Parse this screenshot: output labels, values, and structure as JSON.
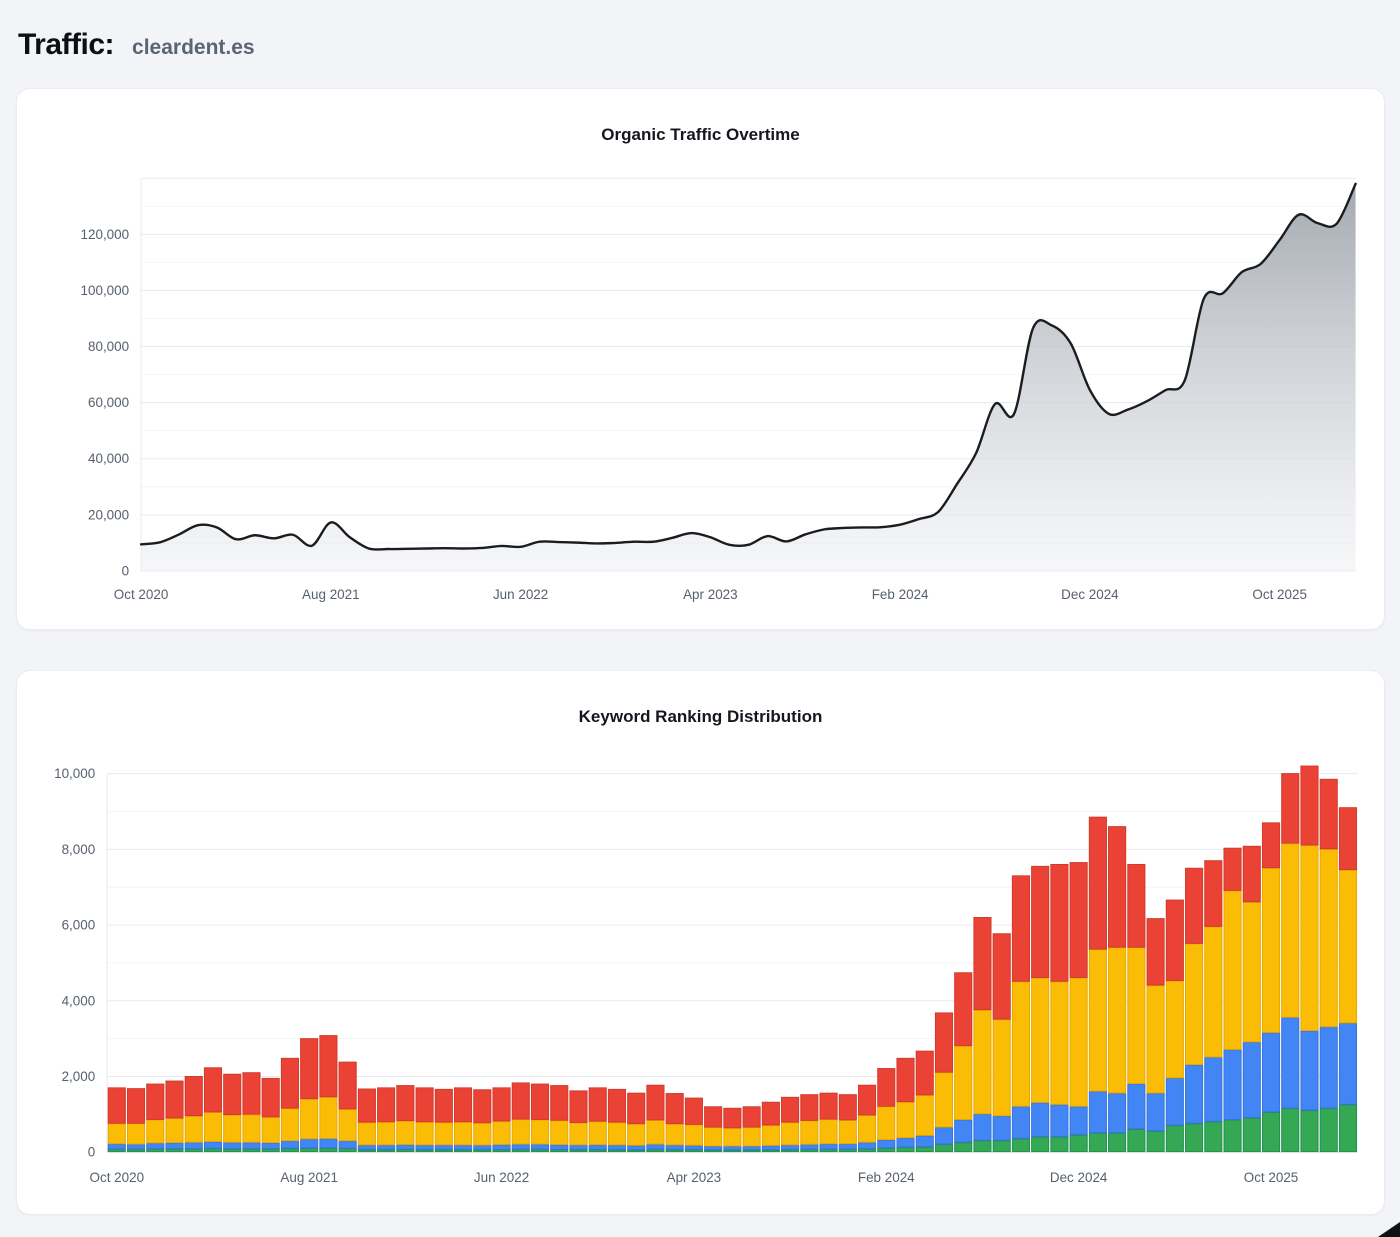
{
  "page": {
    "title_label": "Traffic:",
    "domain": "cleardent.es"
  },
  "colors": {
    "background": "#f2f4f7",
    "card": "#ffffff",
    "card_border": "#e9ecf0",
    "grid_major": "#e7eaee",
    "grid_minor": "#f3f4f7",
    "axis_text": "#57606f",
    "title_text": "#14181e"
  },
  "chart_data": [
    {
      "type": "area",
      "title": "Organic Traffic Overtime",
      "x_start": "Oct 2020",
      "x_interval": "monthly",
      "x_tick_labels": [
        "Oct 2020",
        "Aug 2021",
        "Jun 2022",
        "Apr 2023",
        "Feb 2024",
        "Dec 2024",
        "Oct 2025"
      ],
      "x_tick_indices": [
        0,
        10,
        20,
        30,
        40,
        50,
        60
      ],
      "y_ticks": [
        0,
        20000,
        40000,
        60000,
        80000,
        100000,
        120000
      ],
      "ylim": [
        0,
        140000
      ],
      "grid": "horizontal major every 20000, minor every 10000",
      "legend": "none",
      "line_color": "#1b1c1f",
      "fill_gradient_top": "#9da3ab",
      "fill_gradient_bottom": "#eef0f3",
      "values": [
        9500,
        10200,
        13000,
        16300,
        15500,
        11300,
        12700,
        11600,
        12900,
        9000,
        17300,
        12000,
        8000,
        7800,
        7900,
        8000,
        8100,
        8000,
        8200,
        8900,
        8600,
        10400,
        10300,
        10100,
        9800,
        10000,
        10400,
        10400,
        11800,
        13500,
        12000,
        9300,
        9300,
        12400,
        10500,
        13000,
        14800,
        15300,
        15500,
        15600,
        16500,
        18500,
        21000,
        31000,
        42000,
        59500,
        56000,
        86500,
        87500,
        81000,
        64500,
        56000,
        57500,
        60500,
        64500,
        68000,
        97000,
        99000,
        106500,
        109500,
        118000,
        127000,
        124000,
        123800,
        138000
      ]
    },
    {
      "type": "stacked-bar",
      "title": "Keyword Ranking Distribution",
      "x_start": "Oct 2020",
      "x_interval": "monthly",
      "x_tick_labels": [
        "Oct 2020",
        "Aug 2021",
        "Jun 2022",
        "Apr 2023",
        "Feb 2024",
        "Dec 2024",
        "Oct 2025"
      ],
      "x_tick_indices": [
        0,
        10,
        20,
        30,
        40,
        50,
        60
      ],
      "y_ticks": [
        0,
        2000,
        4000,
        6000,
        8000,
        10000
      ],
      "ylim": [
        0,
        10500
      ],
      "grid": "horizontal major every 2000, minor every 1000",
      "legend": "none",
      "stack_order": "green bottom, then blue, then yellow, red on top",
      "series": [
        {
          "name": "green",
          "color": "#34a853",
          "border_color": "#1e9150",
          "values": [
            70,
            70,
            80,
            80,
            80,
            90,
            80,
            80,
            80,
            90,
            100,
            100,
            90,
            60,
            60,
            65,
            60,
            60,
            60,
            60,
            60,
            65,
            65,
            60,
            60,
            60,
            60,
            55,
            65,
            60,
            60,
            50,
            50,
            50,
            55,
            60,
            65,
            70,
            70,
            80,
            100,
            120,
            130,
            200,
            250,
            300,
            300,
            350,
            400,
            400,
            450,
            500,
            500,
            600,
            550,
            700,
            750,
            800,
            850,
            900,
            1050,
            1150,
            1100,
            1150,
            1250
          ]
        },
        {
          "name": "blue",
          "color": "#4285f4",
          "border_color": "#3674dc",
          "values": [
            140,
            130,
            150,
            160,
            170,
            180,
            170,
            170,
            160,
            200,
            240,
            250,
            200,
            120,
            120,
            125,
            120,
            120,
            120,
            115,
            130,
            135,
            135,
            130,
            120,
            125,
            120,
            115,
            135,
            120,
            110,
            100,
            100,
            100,
            110,
            120,
            130,
            140,
            140,
            170,
            220,
            250,
            300,
            450,
            600,
            700,
            650,
            850,
            900,
            850,
            750,
            1100,
            1050,
            1200,
            1000,
            1250,
            1550,
            1700,
            1850,
            2000,
            2100,
            2400,
            2100,
            2150,
            2150
          ]
        },
        {
          "name": "yellow",
          "color": "#fbbc05",
          "border_color": "#e7a802",
          "values": [
            540,
            550,
            620,
            650,
            700,
            780,
            730,
            740,
            680,
            860,
            1060,
            1100,
            840,
            600,
            610,
            630,
            610,
            600,
            610,
            590,
            620,
            660,
            650,
            640,
            590,
            620,
            600,
            570,
            640,
            560,
            550,
            500,
            480,
            500,
            540,
            600,
            630,
            650,
            630,
            720,
            880,
            950,
            1070,
            1450,
            1950,
            2750,
            2550,
            3300,
            3300,
            3250,
            3400,
            3750,
            3850,
            3600,
            2850,
            2570,
            3200,
            3450,
            4200,
            3700,
            4350,
            4600,
            4900,
            4700,
            4050
          ]
        },
        {
          "name": "red",
          "color": "#ea4335",
          "border_color": "#d23b2d",
          "values": [
            950,
            930,
            950,
            990,
            1050,
            1180,
            1080,
            1110,
            1030,
            1330,
            1600,
            1630,
            1250,
            890,
            910,
            940,
            910,
            880,
            910,
            885,
            890,
            970,
            950,
            930,
            850,
            895,
            880,
            820,
            930,
            810,
            710,
            550,
            530,
            550,
            615,
            670,
            695,
            700,
            680,
            800,
            1010,
            1160,
            1170,
            1580,
            1940,
            2450,
            2270,
            2800,
            2950,
            3100,
            3050,
            3500,
            3200,
            2200,
            1770,
            2140,
            2000,
            1750,
            1130,
            1480,
            1200,
            1850,
            2100,
            1850,
            1650
          ]
        }
      ]
    }
  ]
}
